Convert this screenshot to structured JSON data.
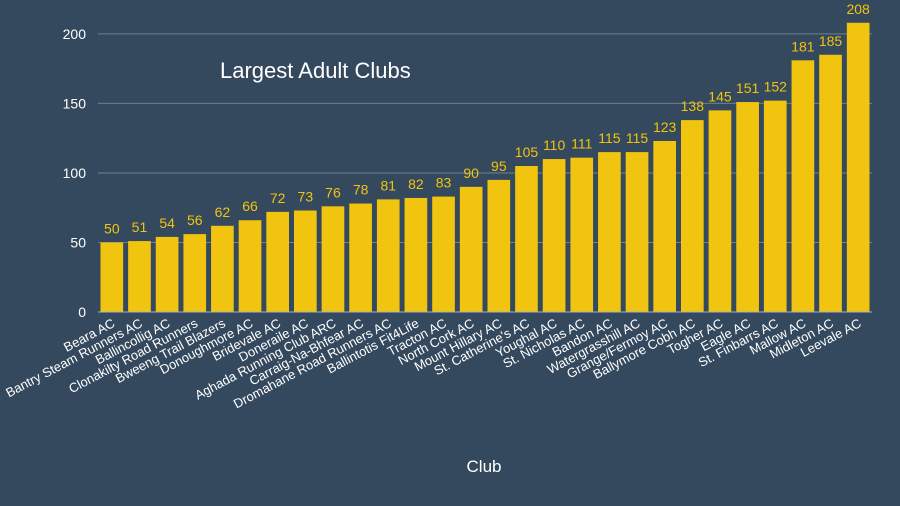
{
  "chart_data": {
    "type": "bar",
    "title": "Largest Adult Clubs",
    "xlabel": "Club",
    "ylabel": "",
    "ylim": [
      0,
      210
    ],
    "yticks": [
      0,
      50,
      100,
      150,
      200
    ],
    "grid": true,
    "bar_color": "#f1c40f",
    "background": "#34495e",
    "categories": [
      "Beara AC",
      "Bantry Steam Runners AC",
      "Ballincollig AC",
      "Clonakilty Road Runners",
      "Bweeng Trail Blazers",
      "Donoughmore AC",
      "Bridevale AC",
      "Doneraile AC",
      "Aghada Running Club ARC",
      "Carraig-Na-Bhfear AC",
      "Dromahane Road Runners AC",
      "Ballintotis Fit4Life",
      "Tracton AC",
      "North Cork AC",
      "Mount Hillary AC",
      "St. Catherine's AC",
      "Youghal AC",
      "St. Nicholas AC",
      "Bandon AC",
      "Watergrasshill AC",
      "Grange/Fermoy AC",
      "Ballymore Cobh AC",
      "Togher AC",
      "Eagle AC",
      "St. Finbarrs AC",
      "Mallow AC",
      "Midleton AC",
      "Leevale AC"
    ],
    "values": [
      50,
      51,
      54,
      56,
      62,
      66,
      72,
      73,
      76,
      78,
      81,
      82,
      83,
      90,
      95,
      105,
      110,
      111,
      115,
      115,
      123,
      138,
      145,
      151,
      152,
      181,
      185,
      208
    ]
  }
}
